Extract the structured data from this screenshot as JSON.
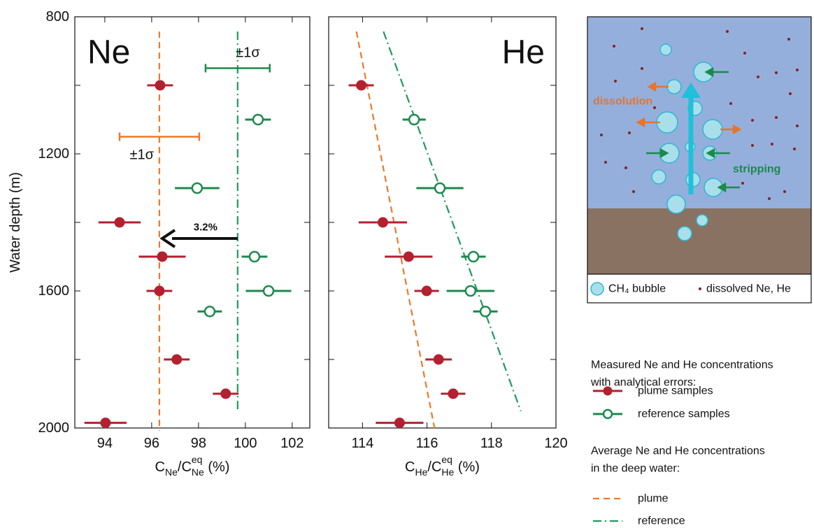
{
  "chart_data": [
    {
      "type": "scatter",
      "panel_label": "Ne",
      "y_label": "Water depth (m)",
      "x_label": [
        "C",
        "Ne",
        "/C",
        "Ne",
        "eq",
        " (%)"
      ],
      "xlim": [
        92.72,
        102.75
      ],
      "xticks": [
        94,
        96,
        98,
        100,
        102
      ],
      "ylim": [
        800,
        2000
      ],
      "y_inverted": true,
      "yticks": [
        800,
        1200,
        1600,
        2000
      ],
      "y_minor_ticks": [
        1000,
        1400,
        1800
      ],
      "series": [
        {
          "color": "#b3202f",
          "filled": true,
          "x": [
            96.36,
            94.63,
            96.45,
            96.33,
            97.07,
            99.16,
            94.03
          ],
          "values": [
            1000,
            1400,
            1500,
            1600,
            1800,
            1900,
            1985
          ],
          "x_errors": [
            0.55,
            0.9,
            1.0,
            0.55,
            0.55,
            0.55,
            0.9
          ]
        },
        {
          "color": "#1b8a4c",
          "filled": false,
          "x": [
            100.54,
            97.94,
            100.39,
            100.99,
            98.48
          ],
          "values": [
            1100,
            1300,
            1500,
            1600,
            1660
          ],
          "x_errors": [
            0.55,
            0.95,
            0.55,
            0.97,
            0.52
          ]
        }
      ],
      "lines": [
        {
          "color": "#ea7a2c",
          "dash": "dashed",
          "x": [
            96.33,
            96.33
          ],
          "values": [
            843,
            2008
          ]
        },
        {
          "color": "#1f9a5a",
          "dash": "dashdot",
          "x": [
            99.67,
            99.67
          ],
          "values": [
            843,
            1951
          ]
        }
      ],
      "sigma_bars": [
        {
          "text": "±1σ",
          "color": "#ea7a2c",
          "x": 96.33,
          "x_error": 1.7,
          "y": 1150
        },
        {
          "text": "±1σ",
          "color": "#1b8a4c",
          "x": 99.67,
          "x_error": 1.37,
          "y": 950
        }
      ],
      "arrow": {
        "text": "3.2%",
        "x_from": 99.67,
        "x_to": 96.45,
        "y": 1447
      }
    },
    {
      "type": "scatter",
      "panel_label": "He",
      "x_label": [
        "C",
        "He",
        "/C",
        "He",
        "eq",
        " (%)"
      ],
      "xlim": [
        112.95,
        120
      ],
      "xticks": [
        114,
        116,
        118,
        120
      ],
      "ylim": [
        800,
        2000
      ],
      "y_inverted": true,
      "y_minor_ticks": [
        1000,
        1200,
        1400,
        1600,
        1800
      ],
      "series": [
        {
          "color": "#b3202f",
          "filled": true,
          "x": [
            113.96,
            114.63,
            115.43,
            115.99,
            116.36,
            116.81,
            115.15
          ],
          "values": [
            1000,
            1400,
            1500,
            1600,
            1800,
            1900,
            1985
          ],
          "x_errors": [
            0.39,
            0.75,
            0.74,
            0.38,
            0.41,
            0.38,
            0.74
          ]
        },
        {
          "color": "#1b8a4c",
          "filled": false,
          "x": [
            115.6,
            116.4,
            117.44,
            117.35,
            117.81
          ],
          "values": [
            1100,
            1300,
            1500,
            1600,
            1660
          ],
          "x_errors": [
            0.36,
            0.73,
            0.38,
            0.74,
            0.38
          ]
        }
      ],
      "lines": [
        {
          "color": "#ea7a2c",
          "dash": "dashed",
          "x": [
            113.81,
            116.25
          ],
          "values": [
            843,
            2008
          ]
        },
        {
          "color": "#1f9a5a",
          "dash": "dashdot",
          "x": [
            114.65,
            118.91
          ],
          "values": [
            843,
            1951
          ]
        }
      ]
    }
  ],
  "diagram": {
    "dissolution": "dissolution",
    "stripping": "stripping",
    "bubble_legend": "CH₄ bubble",
    "dot_legend": "dissolved Ne, He"
  },
  "legend": {
    "samples_heading": [
      "Measured Ne and He concentrations",
      "with analytical errors:"
    ],
    "samples": [
      "plume samples",
      "reference samples"
    ],
    "average_heading": [
      "Average Ne and He concentrations",
      "in the deep water:"
    ],
    "average": [
      "plume",
      "reference"
    ]
  }
}
